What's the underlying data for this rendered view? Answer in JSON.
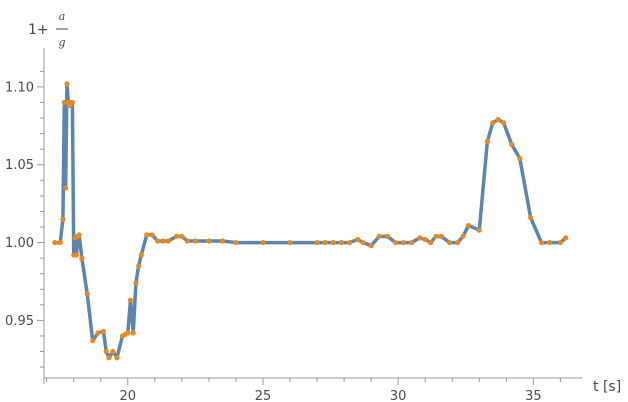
{
  "chart_data": {
    "type": "line",
    "xlabel": "t [s]",
    "ylabel": {
      "prefix": "1+",
      "numerator": "a",
      "denominator": "g"
    },
    "xlim": [
      16.9,
      36.8
    ],
    "ylim": [
      0.913,
      1.116
    ],
    "x_ticks": [
      "20",
      "25",
      "30",
      "35"
    ],
    "y_ticks": [
      "0.95",
      "1.00",
      "1.05",
      "1.10"
    ],
    "grid": false,
    "line_color": "#5B84B1",
    "marker_color": "#E8891E",
    "series": [
      {
        "x": [
          17.3,
          17.5,
          17.6,
          17.65,
          17.7,
          17.75,
          17.8,
          17.85,
          17.9,
          17.95,
          18.0,
          18.05,
          18.1,
          18.15,
          18.2,
          18.3,
          18.5,
          18.7,
          18.9,
          19.1,
          19.2,
          19.3,
          19.45,
          19.6,
          19.8,
          19.9,
          20.0,
          20.1,
          20.2,
          20.3,
          20.4,
          20.5,
          20.7,
          20.9,
          21.1,
          21.3,
          21.5,
          21.8,
          22.0,
          22.2,
          22.5,
          23.0,
          23.5,
          24.0,
          25.0,
          26.0,
          27.0,
          27.3,
          27.6,
          27.9,
          28.2,
          28.5,
          28.7,
          29.0,
          29.3,
          29.6,
          29.9,
          30.2,
          30.5,
          30.8,
          31.0,
          31.2,
          31.4,
          31.6,
          31.9,
          32.2,
          32.4,
          32.6,
          33.0,
          33.3,
          33.5,
          33.7,
          33.9,
          34.2,
          34.5,
          34.9,
          35.3,
          35.6,
          36.0,
          36.2
        ],
        "y": [
          1.0,
          1.0,
          1.015,
          1.09,
          1.035,
          1.102,
          1.09,
          1.088,
          1.09,
          1.09,
          0.992,
          1.003,
          0.992,
          1.004,
          1.005,
          0.99,
          0.967,
          0.937,
          0.942,
          0.943,
          0.93,
          0.926,
          0.93,
          0.926,
          0.94,
          0.941,
          0.942,
          0.963,
          0.942,
          0.974,
          0.985,
          0.992,
          1.005,
          1.005,
          1.001,
          1.001,
          1.001,
          1.004,
          1.004,
          1.001,
          1.001,
          1.001,
          1.001,
          1.0,
          1.0,
          1.0,
          1.0,
          1.0,
          1.0,
          1.0,
          1.0,
          1.002,
          1.0,
          0.998,
          1.004,
          1.004,
          1.0,
          1.0,
          1.0,
          1.003,
          1.002,
          1.0,
          1.004,
          1.004,
          1.0,
          1.0,
          1.004,
          1.011,
          1.008,
          1.065,
          1.077,
          1.079,
          1.077,
          1.063,
          1.054,
          1.016,
          1.0,
          1.0,
          1.0,
          1.003
        ]
      }
    ]
  }
}
